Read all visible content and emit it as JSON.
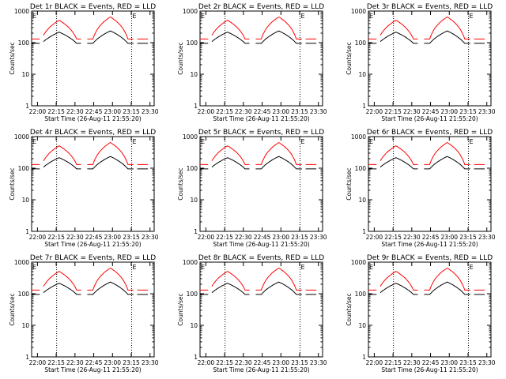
{
  "page": {
    "background": "#ffffff"
  },
  "colors": {
    "events": "#000000",
    "lld": "#ff0000",
    "axes": "#000000",
    "marker": "#000000"
  },
  "chart_data": [
    {
      "title": "Det 1r BLACK = Events, RED = LLD"
    },
    {
      "title": "Det 2r BLACK = Events, RED = LLD"
    },
    {
      "title": "Det 3r BLACK = Events, RED = LLD"
    },
    {
      "title": "Det 4r BLACK = Events, RED = LLD"
    },
    {
      "title": "Det 5r BLACK = Events, RED = LLD"
    },
    {
      "title": "Det 6r BLACK = Events, RED = LLD"
    },
    {
      "title": "Det 7r BLACK = Events, RED = LLD"
    },
    {
      "title": "Det 8r BLACK = Events, RED = LLD"
    },
    {
      "title": "Det 9r BLACK = Events, RED = LLD"
    }
  ],
  "shared": {
    "type": "line",
    "xlabel": "Start Time (26-Aug-11 21:55:20)",
    "ylabel": "Counts/sec",
    "x_tick_labels": [
      "22:00",
      "22:15",
      "22:30",
      "22:45",
      "23:00",
      "23:15",
      "23:30"
    ],
    "x_tick_minutes": [
      4.667,
      19.667,
      34.667,
      49.667,
      64.667,
      79.667,
      94.667
    ],
    "y_tick_labels": [
      "1",
      "10",
      "100",
      "1000"
    ],
    "y_tick_values": [
      1,
      10,
      100,
      1000
    ],
    "xlim_minutes": [
      0,
      98
    ],
    "ylim": [
      1,
      1000
    ],
    "y_scale": "log",
    "vlines_minutes": [
      20,
      80
    ],
    "markers": [
      {
        "minute": 0.6,
        "text": "E"
      },
      {
        "minute": 80.6,
        "text": "E"
      }
    ]
  },
  "series_model": {
    "events_base": 95,
    "events_bumps": [
      [
        22,
        120
      ],
      [
        63,
        140
      ]
    ],
    "lld_base": 130,
    "lld_bumps": [
      [
        22,
        380
      ],
      [
        63,
        520
      ]
    ],
    "gaps": [
      [
        7,
        9
      ],
      [
        40,
        44
      ],
      [
        82,
        84
      ]
    ]
  }
}
